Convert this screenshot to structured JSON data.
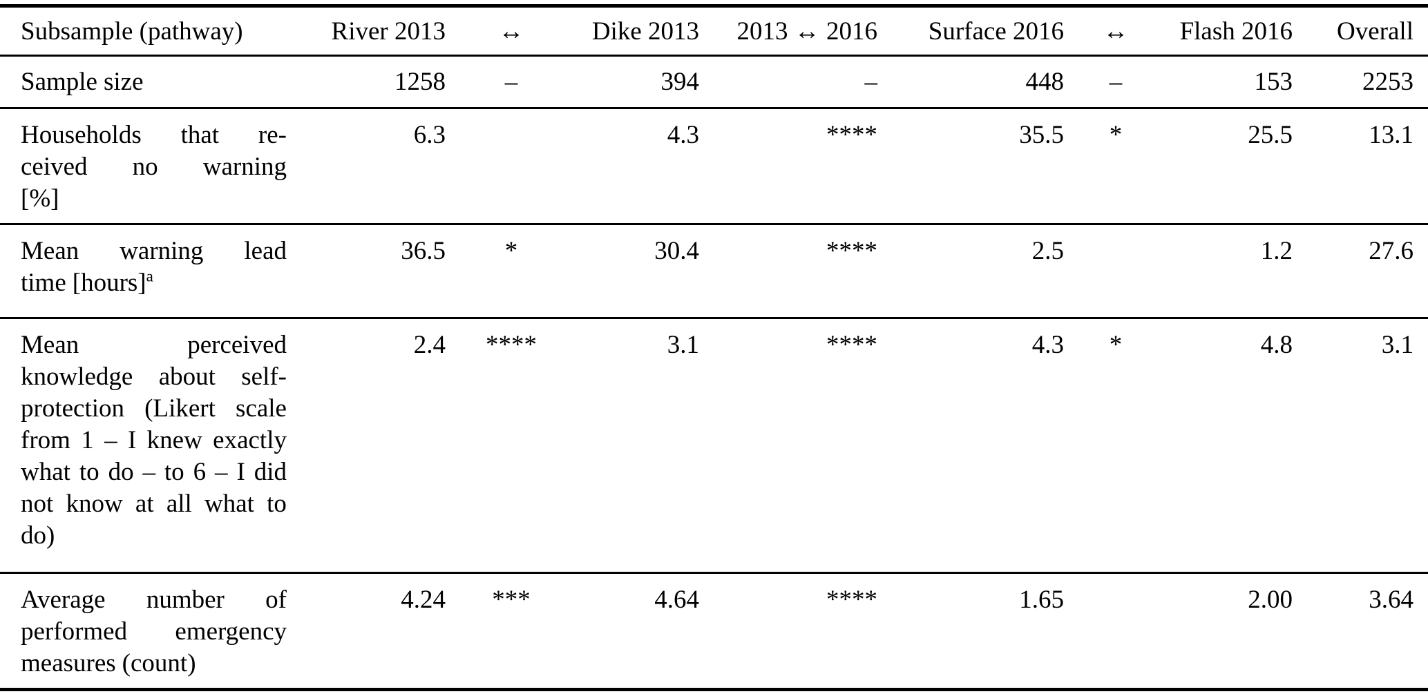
{
  "table": {
    "columns": [
      {
        "key": "label",
        "label": "Subsample (pathway)",
        "align": "left"
      },
      {
        "key": "river_2013",
        "label": "River 2013",
        "align": "right"
      },
      {
        "key": "cmp_river_dike",
        "label": "↔",
        "align": "center"
      },
      {
        "key": "dike_2013",
        "label": "Dike 2013",
        "align": "right"
      },
      {
        "key": "cmp_2013_2016",
        "label": "2013 ↔ 2016",
        "align": "right"
      },
      {
        "key": "surface_2016",
        "label": "Surface 2016",
        "align": "right"
      },
      {
        "key": "cmp_surface_flash",
        "label": "↔",
        "align": "center"
      },
      {
        "key": "flash_2016",
        "label": "Flash 2016",
        "align": "right"
      },
      {
        "key": "overall",
        "label": "Overall",
        "align": "right"
      }
    ],
    "rows": [
      {
        "label": "Sample size",
        "label_lines": [
          [
            "Sample",
            "size"
          ]
        ],
        "values": [
          "1258",
          "–",
          "394",
          "–",
          "448",
          "–",
          "153",
          "2253"
        ]
      },
      {
        "label": "Households that received no warning [%]",
        "label_lines": [
          [
            "Households",
            "that",
            "re-"
          ],
          [
            "ceived",
            "no",
            "warning"
          ],
          [
            "[%]"
          ]
        ],
        "values": [
          "6.3",
          "",
          "4.3",
          "****",
          "35.5",
          "*",
          "25.5",
          "13.1"
        ]
      },
      {
        "label": "Mean warning lead time [hours]",
        "footnote": "a",
        "label_lines": [
          [
            "Mean",
            "warning",
            "lead"
          ],
          [
            "time",
            {
              "t": "[hours]",
              "sup": "a"
            }
          ]
        ],
        "values": [
          "36.5",
          "*",
          "30.4",
          "****",
          "2.5",
          "",
          "1.2",
          "27.6"
        ]
      },
      {
        "label": "Mean perceived knowledge about self-protection (Likert scale from 1 – I knew exactly what to do – to 6 – I did not know at all what to do)",
        "label_lines": [
          [
            "Mean",
            "perceived"
          ],
          [
            "knowledge",
            "about",
            "self-"
          ],
          [
            "protection",
            "(Likert",
            "scale"
          ],
          [
            "from",
            "1",
            "–",
            "I",
            "knew",
            "exactly"
          ],
          [
            "what",
            "to",
            "do",
            "–",
            "to",
            "6",
            "–",
            "I",
            "did"
          ],
          [
            "not",
            "know",
            "at",
            "all",
            "what",
            "to"
          ],
          [
            "do)"
          ]
        ],
        "values": [
          "2.4",
          "****",
          "3.1",
          "****",
          "4.3",
          "*",
          "4.8",
          "3.1"
        ]
      },
      {
        "label": "Average number of performed emergency measures (count)",
        "label_lines": [
          [
            "Average",
            "number",
            "of"
          ],
          [
            "performed",
            "emergency"
          ],
          [
            "measures",
            "(count)"
          ]
        ],
        "values": [
          "4.24",
          "***",
          "4.64",
          "****",
          "1.65",
          "",
          "2.00",
          "3.64"
        ]
      }
    ]
  },
  "colors": {
    "text": "#000000",
    "rule": "#000000",
    "background": "#ffffff"
  }
}
